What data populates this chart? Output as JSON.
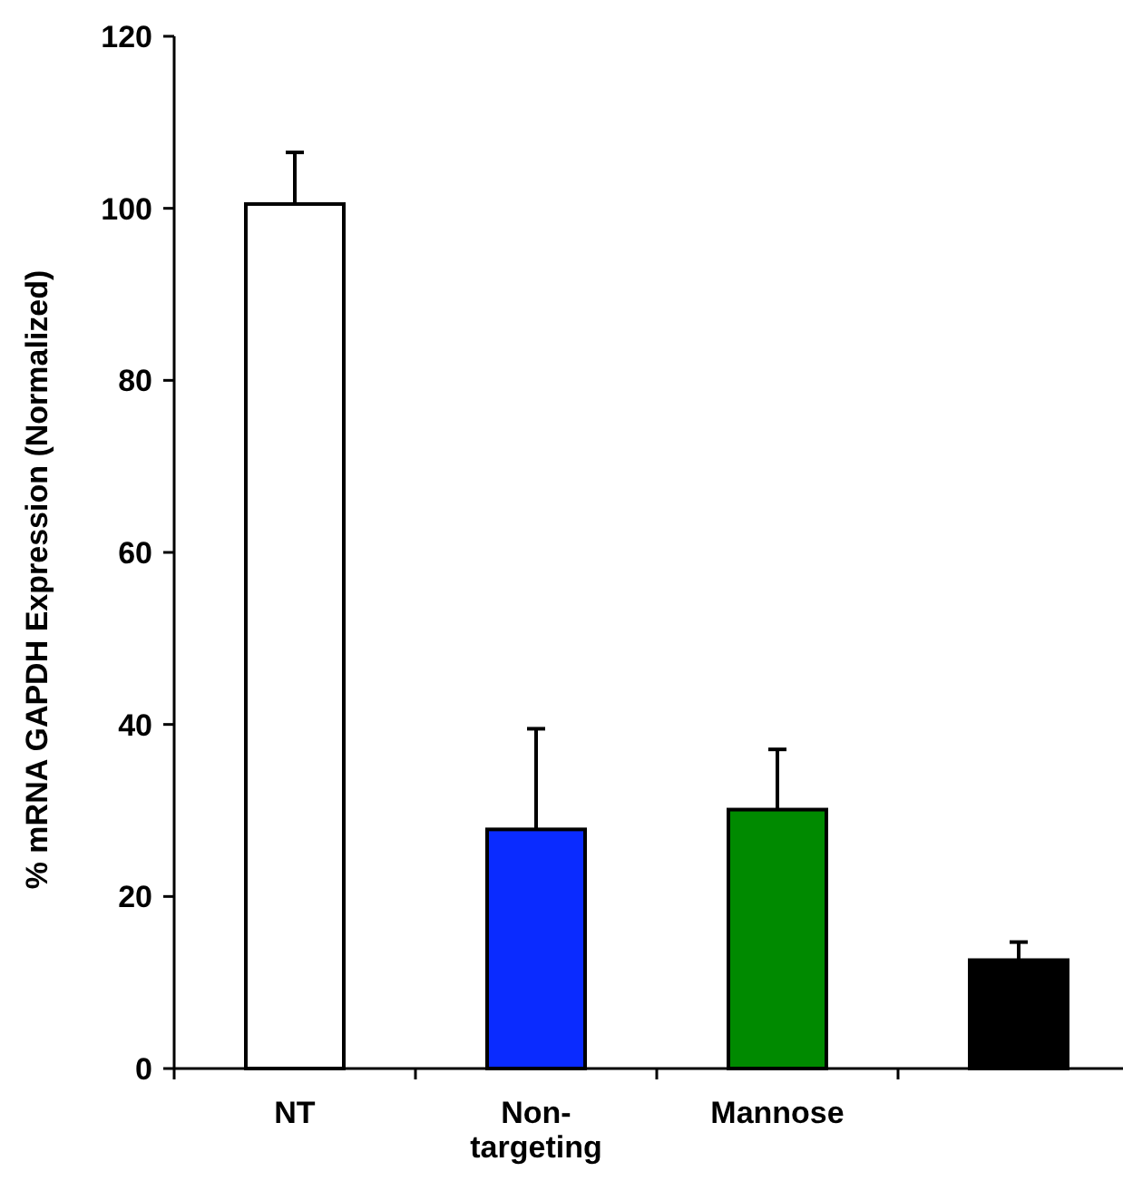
{
  "chart_data": {
    "type": "bar",
    "ylabel": "% mRNA GAPDH Expression (Normalized)",
    "categories": [
      "NT",
      "Non-targeting",
      "Mannose",
      null
    ],
    "values": [
      100.5,
      27.8,
      30.1,
      12.6
    ],
    "colors": [
      "#ffffff",
      "#0a2bff",
      "#008a00",
      "#000000"
    ],
    "errors": [
      [
        100.5,
        106.5
      ],
      [
        27.8,
        39.5
      ],
      [
        30.1,
        37.1
      ],
      [
        12.6,
        14.7
      ]
    ],
    "ylim": [
      0,
      120
    ],
    "yticks": [
      0,
      20,
      40,
      60,
      80,
      100,
      120
    ]
  }
}
